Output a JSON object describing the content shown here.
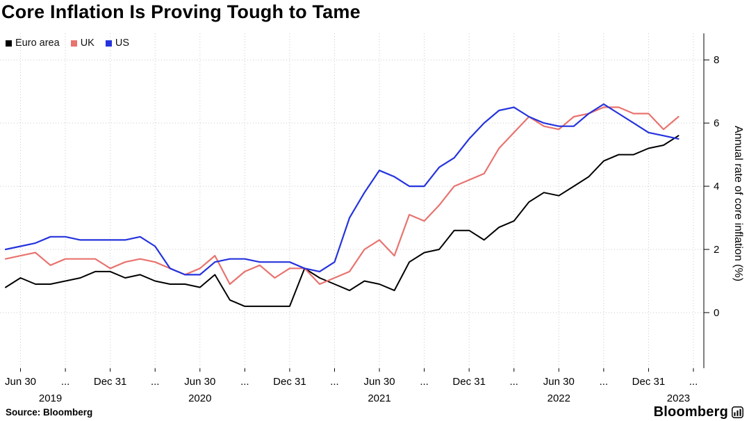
{
  "title": "Core Inflation Is Proving Tough to Tame",
  "legend": [
    {
      "label": "Euro area",
      "color": "#000000"
    },
    {
      "label": "UK",
      "color": "#e8736f"
    },
    {
      "label": "US",
      "color": "#2433dd"
    }
  ],
  "footer": {
    "source": "Source: Bloomberg",
    "brand": "Bloomberg"
  },
  "chart_data": {
    "type": "line",
    "title": "Core Inflation Is Proving Tough to Tame",
    "xlabel": "",
    "ylabel": "Annual rate of core inflation (%)",
    "ylim": [
      -1.76,
      8.84
    ],
    "y_ticks": [
      0,
      2,
      4,
      6,
      8
    ],
    "grid": "dotted",
    "legend_position": "top-left",
    "x_unit": "month",
    "x": [
      "2019-05",
      "2019-06",
      "2019-07",
      "2019-08",
      "2019-09",
      "2019-10",
      "2019-11",
      "2019-12",
      "2020-01",
      "2020-02",
      "2020-03",
      "2020-04",
      "2020-05",
      "2020-06",
      "2020-07",
      "2020-08",
      "2020-09",
      "2020-10",
      "2020-11",
      "2020-12",
      "2021-01",
      "2021-02",
      "2021-03",
      "2021-04",
      "2021-05",
      "2021-06",
      "2021-07",
      "2021-08",
      "2021-09",
      "2021-10",
      "2021-11",
      "2021-12",
      "2022-01",
      "2022-02",
      "2022-03",
      "2022-04",
      "2022-05",
      "2022-06",
      "2022-07",
      "2022-08",
      "2022-09",
      "2022-10",
      "2022-11",
      "2022-12",
      "2023-01",
      "2023-02"
    ],
    "x_ticks": [
      {
        "m": 1,
        "label": "Jun 30"
      },
      {
        "m": 4,
        "label": "..."
      },
      {
        "m": 7,
        "label": "Dec 31"
      },
      {
        "m": 10,
        "label": "..."
      },
      {
        "m": 13,
        "label": "Jun 30"
      },
      {
        "m": 16,
        "label": "..."
      },
      {
        "m": 19,
        "label": "Dec 31"
      },
      {
        "m": 22,
        "label": "..."
      },
      {
        "m": 25,
        "label": "Jun 30"
      },
      {
        "m": 28,
        "label": "..."
      },
      {
        "m": 31,
        "label": "Dec 31"
      },
      {
        "m": 34,
        "label": "..."
      },
      {
        "m": 37,
        "label": "Jun 30"
      },
      {
        "m": 40,
        "label": "..."
      },
      {
        "m": 43,
        "label": "Dec 31"
      },
      {
        "m": 46,
        "label": "..."
      }
    ],
    "year_labels": [
      {
        "m": 3,
        "label": "2019"
      },
      {
        "m": 13,
        "label": "2020"
      },
      {
        "m": 25,
        "label": "2021"
      },
      {
        "m": 37,
        "label": "2022"
      },
      {
        "m": 45,
        "label": "2023"
      }
    ],
    "series": [
      {
        "name": "Euro area",
        "color": "#000000",
        "values": [
          0.8,
          1.1,
          0.9,
          0.9,
          1.0,
          1.1,
          1.3,
          1.3,
          1.1,
          1.2,
          1.0,
          0.9,
          0.9,
          0.8,
          1.2,
          0.4,
          0.2,
          0.2,
          0.2,
          0.2,
          1.4,
          1.1,
          0.9,
          0.7,
          1.0,
          0.9,
          0.7,
          1.6,
          1.9,
          2.0,
          2.6,
          2.6,
          2.3,
          2.7,
          2.9,
          3.5,
          3.8,
          3.7,
          4.0,
          4.3,
          4.8,
          5.0,
          5.0,
          5.2,
          5.3,
          5.6
        ]
      },
      {
        "name": "UK",
        "color": "#e8736f",
        "values": [
          1.7,
          1.8,
          1.9,
          1.5,
          1.7,
          1.7,
          1.7,
          1.4,
          1.6,
          1.7,
          1.6,
          1.4,
          1.2,
          1.4,
          1.8,
          0.9,
          1.3,
          1.5,
          1.1,
          1.4,
          1.4,
          0.9,
          1.1,
          1.3,
          2.0,
          2.3,
          1.8,
          3.1,
          2.9,
          3.4,
          4.0,
          4.2,
          4.4,
          5.2,
          5.7,
          6.2,
          5.9,
          5.8,
          6.2,
          6.3,
          6.5,
          6.5,
          6.3,
          6.3,
          5.8,
          6.2
        ]
      },
      {
        "name": "US",
        "color": "#2433dd",
        "values": [
          2.0,
          2.1,
          2.2,
          2.4,
          2.4,
          2.3,
          2.3,
          2.3,
          2.3,
          2.4,
          2.1,
          1.4,
          1.2,
          1.2,
          1.6,
          1.7,
          1.7,
          1.6,
          1.6,
          1.6,
          1.4,
          1.3,
          1.6,
          3.0,
          3.8,
          4.5,
          4.3,
          4.0,
          4.0,
          4.6,
          4.9,
          5.5,
          6.0,
          6.4,
          6.5,
          6.2,
          6.0,
          5.9,
          5.9,
          6.3,
          6.6,
          6.3,
          6.0,
          5.7,
          5.6,
          5.5
        ]
      }
    ]
  }
}
